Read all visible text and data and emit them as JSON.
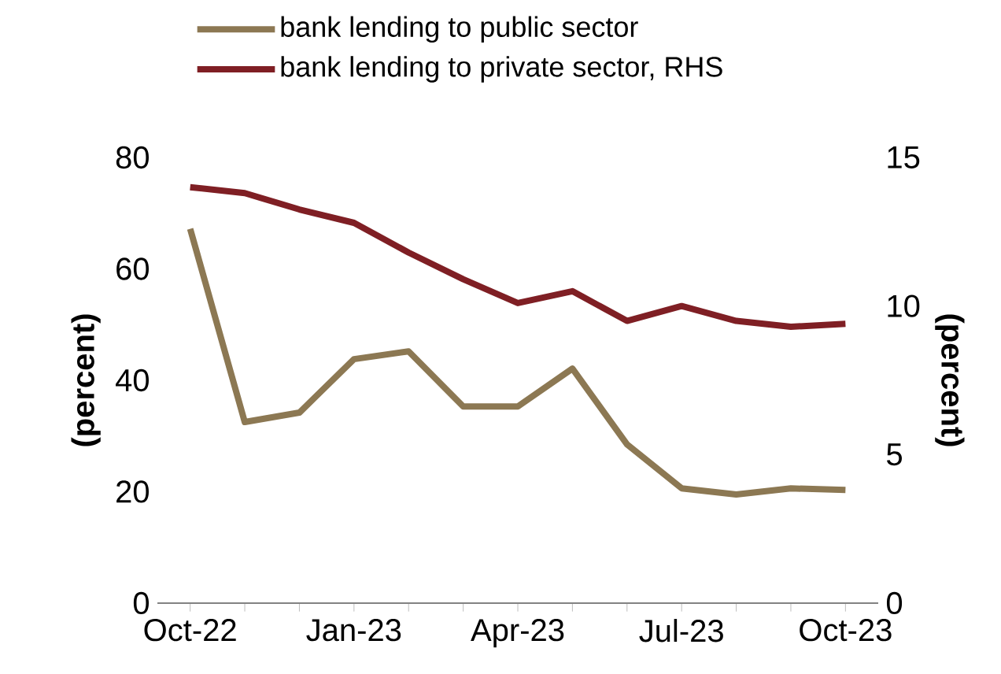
{
  "chart_data": {
    "type": "line",
    "ylabel": "(percent)",
    "y2label": "(percent)",
    "categories": [
      "Oct-22",
      null,
      null,
      "Jan-23",
      null,
      null,
      "Apr-23",
      null,
      null,
      "Jul-23",
      null,
      null,
      "Oct-23"
    ],
    "series": [
      {
        "name": "bank lending to public sector",
        "color": "#8c7853",
        "values": [
          67.2,
          32.5,
          34.2,
          43.8,
          45.2,
          35.3,
          35.3,
          42.1,
          28.5,
          20.6,
          19.5,
          20.6,
          20.3
        ]
      },
      {
        "name": "bank lending to private sector, RHS",
        "color": "#7f1f24",
        "axis": "y2",
        "values": [
          14.0,
          13.8,
          13.25,
          12.8,
          11.8,
          10.9,
          10.1,
          10.5,
          9.5,
          10.0,
          9.5,
          9.3,
          9.4
        ]
      }
    ],
    "ylim": [
      0,
      80
    ],
    "yticks": [
      0,
      20,
      40,
      60,
      80
    ],
    "y2lim": [
      0,
      15
    ],
    "y2ticks": [
      0,
      5,
      10,
      15
    ],
    "legend": "top",
    "grid": false,
    "marker": "none",
    "line_style": "solid"
  }
}
